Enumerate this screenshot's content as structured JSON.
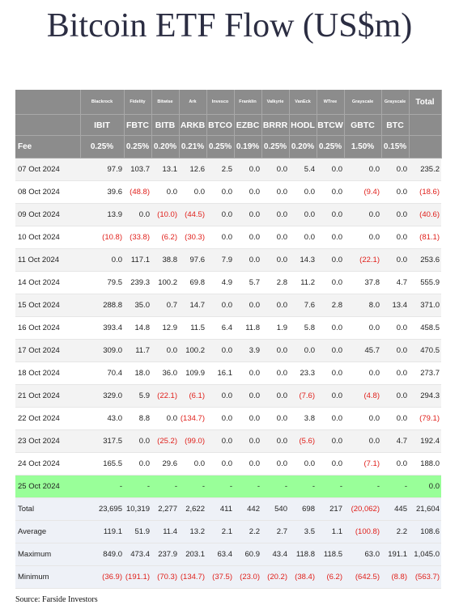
{
  "title": "Bitcoin ETF Flow (US$m)",
  "source": "Source: Farside Investors",
  "highlight_color": "#99ff99",
  "negative_color": "#e0201b",
  "header": {
    "sponsors": [
      "Blackrock",
      "Fidelity",
      "Bitwise",
      "Ark",
      "Invesco",
      "Franklin",
      "Valkyrie",
      "VanEck",
      "WTree",
      "Grayscale",
      "Grayscale"
    ],
    "total_label": "Total",
    "tickers": [
      "IBIT",
      "FBTC",
      "BITB",
      "ARKB",
      "BTCO",
      "EZBC",
      "BRRR",
      "HODL",
      "BTCW",
      "GBTC",
      "BTC"
    ],
    "fee_label": "Fee",
    "fees": [
      "0.25%",
      "0.25%",
      "0.20%",
      "0.21%",
      "0.25%",
      "0.19%",
      "0.25%",
      "0.20%",
      "0.25%",
      "1.50%",
      "0.15%"
    ]
  },
  "rows": [
    {
      "date": "07 Oct 2024",
      "values": [
        "97.9",
        "103.7",
        "13.1",
        "12.6",
        "2.5",
        "0.0",
        "0.0",
        "5.4",
        "0.0",
        "0.0",
        "0.0"
      ],
      "total": "235.2"
    },
    {
      "date": "08 Oct 2024",
      "values": [
        "39.6",
        "(48.8)",
        "0.0",
        "0.0",
        "0.0",
        "0.0",
        "0.0",
        "0.0",
        "0.0",
        "(9.4)",
        "0.0"
      ],
      "total": "(18.6)"
    },
    {
      "date": "09 Oct 2024",
      "values": [
        "13.9",
        "0.0",
        "(10.0)",
        "(44.5)",
        "0.0",
        "0.0",
        "0.0",
        "0.0",
        "0.0",
        "0.0",
        "0.0"
      ],
      "total": "(40.6)"
    },
    {
      "date": "10 Oct 2024",
      "values": [
        "(10.8)",
        "(33.8)",
        "(6.2)",
        "(30.3)",
        "0.0",
        "0.0",
        "0.0",
        "0.0",
        "0.0",
        "0.0",
        "0.0"
      ],
      "total": "(81.1)"
    },
    {
      "date": "11 Oct 2024",
      "values": [
        "0.0",
        "117.1",
        "38.8",
        "97.6",
        "7.9",
        "0.0",
        "0.0",
        "14.3",
        "0.0",
        "(22.1)",
        "0.0"
      ],
      "total": "253.6"
    },
    {
      "date": "14 Oct 2024",
      "values": [
        "79.5",
        "239.3",
        "100.2",
        "69.8",
        "4.9",
        "5.7",
        "2.8",
        "11.2",
        "0.0",
        "37.8",
        "4.7"
      ],
      "total": "555.9"
    },
    {
      "date": "15 Oct 2024",
      "values": [
        "288.8",
        "35.0",
        "0.7",
        "14.7",
        "0.0",
        "0.0",
        "0.0",
        "7.6",
        "2.8",
        "8.0",
        "13.4"
      ],
      "total": "371.0"
    },
    {
      "date": "16 Oct 2024",
      "values": [
        "393.4",
        "14.8",
        "12.9",
        "11.5",
        "6.4",
        "11.8",
        "1.9",
        "5.8",
        "0.0",
        "0.0",
        "0.0"
      ],
      "total": "458.5"
    },
    {
      "date": "17 Oct 2024",
      "values": [
        "309.0",
        "11.7",
        "0.0",
        "100.2",
        "0.0",
        "3.9",
        "0.0",
        "0.0",
        "0.0",
        "45.7",
        "0.0"
      ],
      "total": "470.5"
    },
    {
      "date": "18 Oct 2024",
      "values": [
        "70.4",
        "18.0",
        "36.0",
        "109.9",
        "16.1",
        "0.0",
        "0.0",
        "23.3",
        "0.0",
        "0.0",
        "0.0"
      ],
      "total": "273.7"
    },
    {
      "date": "21 Oct 2024",
      "values": [
        "329.0",
        "5.9",
        "(22.1)",
        "(6.1)",
        "0.0",
        "0.0",
        "0.0",
        "(7.6)",
        "0.0",
        "(4.8)",
        "0.0"
      ],
      "total": "294.3"
    },
    {
      "date": "22 Oct 2024",
      "values": [
        "43.0",
        "8.8",
        "0.0",
        "(134.7)",
        "0.0",
        "0.0",
        "0.0",
        "3.8",
        "0.0",
        "0.0",
        "0.0"
      ],
      "total": "(79.1)"
    },
    {
      "date": "23 Oct 2024",
      "values": [
        "317.5",
        "0.0",
        "(25.2)",
        "(99.0)",
        "0.0",
        "0.0",
        "0.0",
        "(5.6)",
        "0.0",
        "0.0",
        "4.7"
      ],
      "total": "192.4"
    },
    {
      "date": "24 Oct 2024",
      "values": [
        "165.5",
        "0.0",
        "29.6",
        "0.0",
        "0.0",
        "0.0",
        "0.0",
        "0.0",
        "0.0",
        "(7.1)",
        "0.0"
      ],
      "total": "188.0"
    },
    {
      "date": "25 Oct 2024",
      "values": [
        "-",
        "-",
        "-",
        "-",
        "-",
        "-",
        "-",
        "-",
        "-",
        "-",
        "-"
      ],
      "total": "0.0",
      "highlight": true
    }
  ],
  "stats": [
    {
      "label": "Total",
      "values": [
        "23,695",
        "10,319",
        "2,277",
        "2,622",
        "411",
        "442",
        "540",
        "698",
        "217",
        "(20,062)",
        "445"
      ],
      "total": "21,604"
    },
    {
      "label": "Average",
      "values": [
        "119.1",
        "51.9",
        "11.4",
        "13.2",
        "2.1",
        "2.2",
        "2.7",
        "3.5",
        "1.1",
        "(100.8)",
        "2.2"
      ],
      "total": "108.6"
    },
    {
      "label": "Maximum",
      "values": [
        "849.0",
        "473.4",
        "237.9",
        "203.1",
        "63.4",
        "60.9",
        "43.4",
        "118.8",
        "118.5",
        "63.0",
        "191.1"
      ],
      "total": "1,045.0"
    },
    {
      "label": "Minimum",
      "values": [
        "(36.9)",
        "(191.1)",
        "(70.3)",
        "(134.7)",
        "(37.5)",
        "(23.0)",
        "(20.2)",
        "(38.4)",
        "(6.2)",
        "(642.5)",
        "(8.8)"
      ],
      "total": "(563.7)"
    }
  ]
}
